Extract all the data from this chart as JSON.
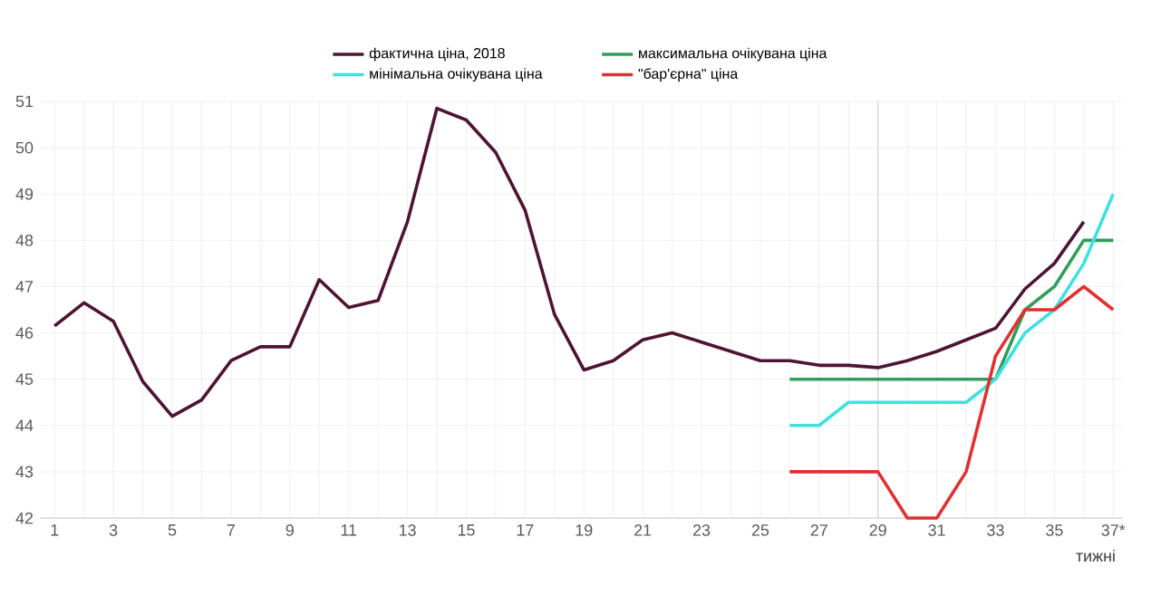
{
  "chart_data": {
    "type": "line",
    "xlabel": "тижні",
    "categories": [
      "1",
      null,
      "3",
      null,
      "5",
      null,
      "7",
      null,
      "9",
      null,
      "11",
      null,
      "13",
      null,
      "15",
      null,
      "17",
      null,
      "19",
      null,
      "21",
      null,
      "23",
      null,
      "25",
      null,
      "27",
      null,
      "29",
      null,
      "31",
      null,
      "33",
      null,
      "35",
      null,
      "37*"
    ],
    "series": [
      {
        "name": "фактична ціна, 2018",
        "color": "#4d1433",
        "values": [
          46.15,
          46.65,
          46.25,
          44.95,
          44.2,
          44.55,
          45.4,
          45.7,
          45.7,
          47.15,
          46.55,
          46.7,
          48.4,
          50.85,
          50.6,
          49.9,
          48.65,
          46.4,
          45.2,
          45.4,
          45.85,
          46.0,
          45.8,
          45.6,
          45.4,
          45.4,
          45.3,
          45.3,
          45.25,
          45.4,
          45.6,
          45.85,
          46.1,
          46.95,
          47.5,
          48.4,
          null
        ]
      },
      {
        "name": "максимальна очікувана ціна",
        "color": "#2e9e5a",
        "values": [
          null,
          null,
          null,
          null,
          null,
          null,
          null,
          null,
          null,
          null,
          null,
          null,
          null,
          null,
          null,
          null,
          null,
          null,
          null,
          null,
          null,
          null,
          null,
          null,
          null,
          45,
          45,
          45,
          45,
          45,
          45,
          45,
          45,
          46.5,
          47,
          48,
          48
        ]
      },
      {
        "name": "мінімальна очікувана ціна",
        "color": "#40e0e0",
        "values": [
          null,
          null,
          null,
          null,
          null,
          null,
          null,
          null,
          null,
          null,
          null,
          null,
          null,
          null,
          null,
          null,
          null,
          null,
          null,
          null,
          null,
          null,
          null,
          null,
          null,
          44,
          44,
          44.5,
          44.5,
          44.5,
          44.5,
          44.5,
          45,
          46,
          46.5,
          47.5,
          49
        ]
      },
      {
        "name": "\"бар'єрна\" ціна",
        "color": "#e03030",
        "values": [
          null,
          null,
          null,
          null,
          null,
          null,
          null,
          null,
          null,
          null,
          null,
          null,
          null,
          null,
          null,
          null,
          null,
          null,
          null,
          null,
          null,
          null,
          null,
          null,
          null,
          43,
          43,
          43,
          43,
          42,
          42,
          43,
          45.5,
          46.5,
          46.5,
          47,
          46.5
        ]
      }
    ],
    "ylim": [
      42,
      51
    ],
    "yticks": [
      42,
      43,
      44,
      45,
      46,
      47,
      48,
      49,
      50,
      51
    ],
    "ref_lines": [
      {
        "axis": "x",
        "value": "29",
        "color": "#bfbfbf"
      }
    ],
    "grid": true,
    "legend": "top",
    "marker": "none",
    "line_style": "solid"
  }
}
